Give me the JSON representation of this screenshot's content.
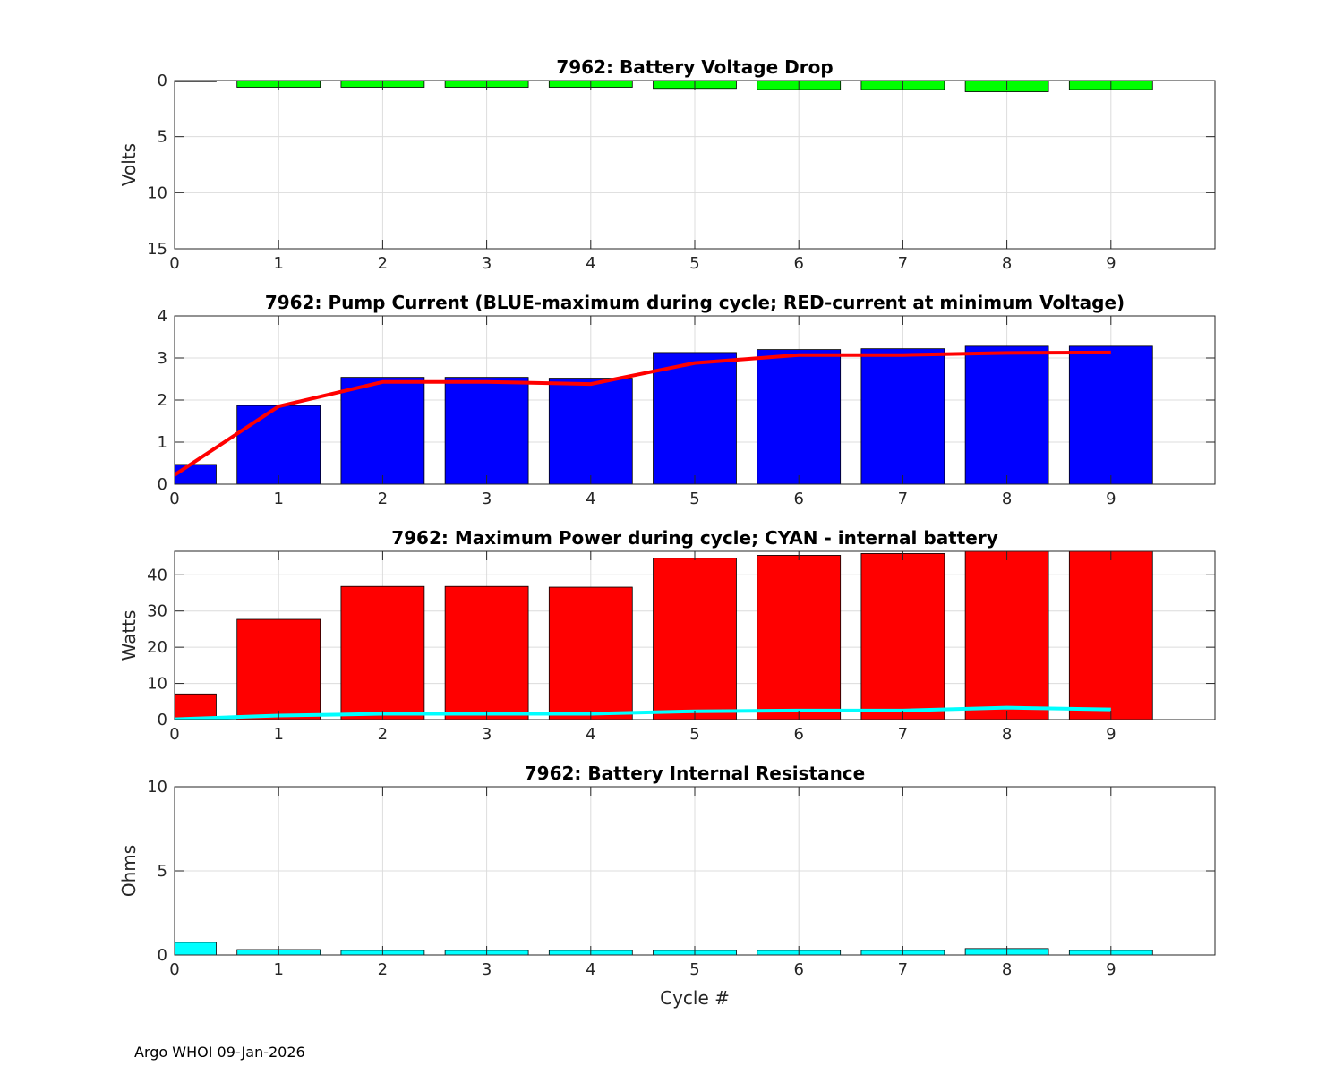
{
  "footer": "Argo WHOI 09-Jan-2026",
  "chart_data": [
    {
      "type": "bar",
      "title": "7962: Battery Voltage Drop",
      "ylabel": "Volts",
      "xlabel": "",
      "ydir": "reverse",
      "ylim": [
        0,
        15
      ],
      "yticks": [
        0,
        5,
        10,
        15
      ],
      "xlim": [
        0,
        10
      ],
      "xticks": [
        0,
        1,
        2,
        3,
        4,
        5,
        6,
        7,
        8,
        9
      ],
      "grid": true,
      "categories": [
        0,
        1,
        2,
        3,
        4,
        5,
        6,
        7,
        8,
        9
      ],
      "series": [
        {
          "name": "Voltage drop",
          "kind": "bar",
          "color": "#00ff00",
          "values": [
            0.1,
            0.6,
            0.6,
            0.6,
            0.6,
            0.7,
            0.8,
            0.8,
            1.0,
            0.8
          ]
        }
      ]
    },
    {
      "type": "bar",
      "title": "7962: Pump Current (BLUE-maximum during cycle; RED-current at minimum Voltage)",
      "ylabel": "",
      "xlabel": "",
      "ylim": [
        0,
        4
      ],
      "yticks": [
        0,
        1,
        2,
        3,
        4
      ],
      "xlim": [
        0,
        10
      ],
      "xticks": [
        0,
        1,
        2,
        3,
        4,
        5,
        6,
        7,
        8,
        9
      ],
      "grid": true,
      "categories": [
        0,
        1,
        2,
        3,
        4,
        5,
        6,
        7,
        8,
        9
      ],
      "series": [
        {
          "name": "Maximum current",
          "kind": "bar",
          "color": "#0000ff",
          "values": [
            0.47,
            1.87,
            2.54,
            2.54,
            2.52,
            3.13,
            3.2,
            3.22,
            3.28,
            3.28
          ]
        },
        {
          "name": "Current at minimum voltage",
          "kind": "line",
          "color": "#ff0000",
          "values": [
            0.22,
            1.85,
            2.43,
            2.43,
            2.38,
            2.88,
            3.07,
            3.07,
            3.12,
            3.13
          ]
        }
      ]
    },
    {
      "type": "bar",
      "title": "7962: Maximum Power during cycle; CYAN - internal battery",
      "ylabel": "Watts",
      "xlabel": "",
      "ylim": [
        0,
        46.5
      ],
      "yticks": [
        0,
        10,
        20,
        30,
        40
      ],
      "xlim": [
        0,
        10
      ],
      "xticks": [
        0,
        1,
        2,
        3,
        4,
        5,
        6,
        7,
        8,
        9
      ],
      "grid": true,
      "categories": [
        0,
        1,
        2,
        3,
        4,
        5,
        6,
        7,
        8,
        9
      ],
      "series": [
        {
          "name": "Maximum power",
          "kind": "bar",
          "color": "#ff0000",
          "values": [
            7.1,
            27.7,
            36.8,
            36.8,
            36.6,
            44.6,
            45.4,
            45.9,
            46.5,
            46.5
          ]
        },
        {
          "name": "Internal battery power",
          "kind": "line",
          "color": "#00ffff",
          "values": [
            0.1,
            1.1,
            1.6,
            1.6,
            1.6,
            2.3,
            2.5,
            2.5,
            3.3,
            2.8
          ]
        }
      ]
    },
    {
      "type": "bar",
      "title": "7962: Battery Internal Resistance",
      "ylabel": "Ohms",
      "xlabel": "Cycle #",
      "ylim": [
        0,
        10
      ],
      "yticks": [
        0,
        5,
        10
      ],
      "xlim": [
        0,
        10
      ],
      "xticks": [
        0,
        1,
        2,
        3,
        4,
        5,
        6,
        7,
        8,
        9
      ],
      "grid": true,
      "categories": [
        0,
        1,
        2,
        3,
        4,
        5,
        6,
        7,
        8,
        9
      ],
      "series": [
        {
          "name": "Internal resistance",
          "kind": "bar",
          "color": "#00ffff",
          "values": [
            0.75,
            0.32,
            0.27,
            0.27,
            0.27,
            0.27,
            0.27,
            0.27,
            0.38,
            0.27
          ]
        }
      ]
    }
  ]
}
